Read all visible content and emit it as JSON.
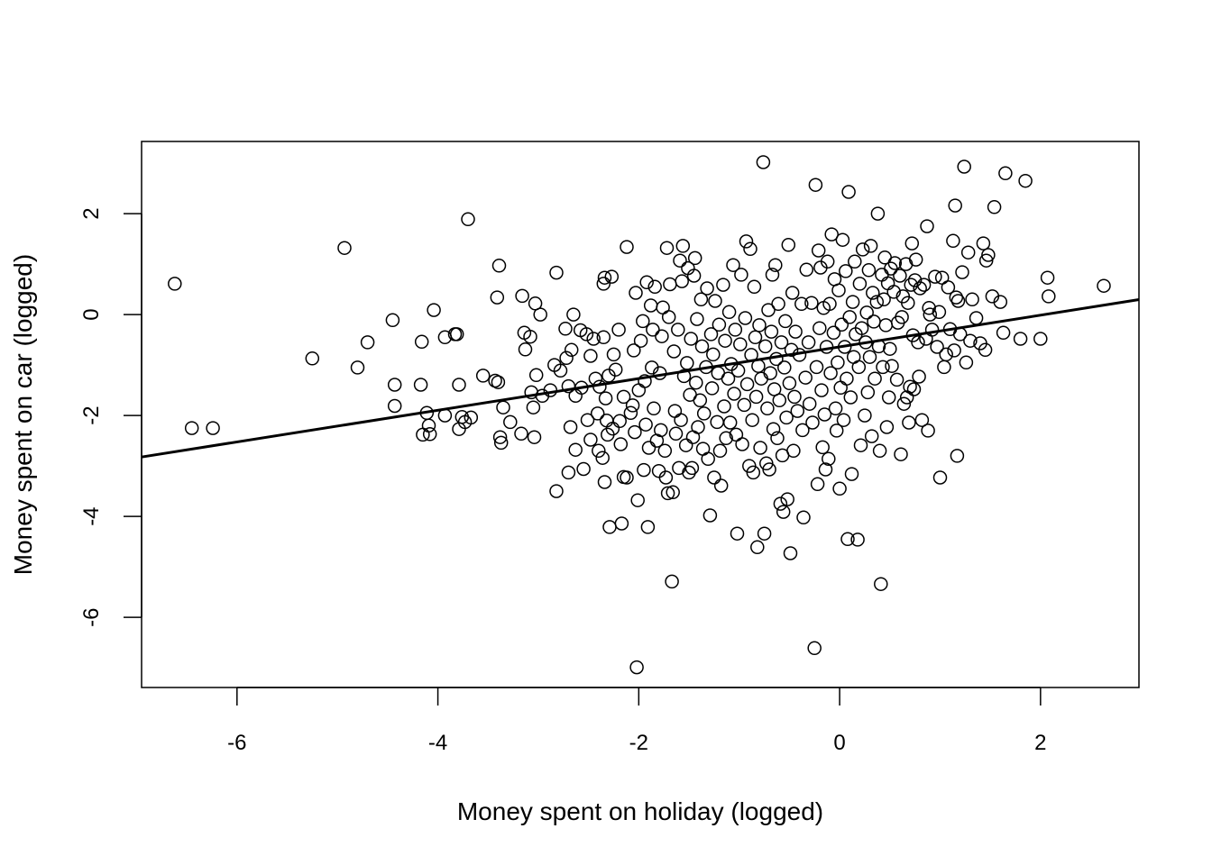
{
  "chart_data": {
    "type": "scatter",
    "title": "",
    "xlabel": "Money spent on holiday (logged)",
    "ylabel": "Money spent on car (logged)",
    "xlim": [
      -6.95,
      2.98
    ],
    "ylim": [
      -7.39,
      3.43
    ],
    "xticks": [
      -6,
      -4,
      -2,
      0,
      2
    ],
    "yticks": [
      -6,
      -4,
      -2,
      0,
      2
    ],
    "xtick_labels": [
      "-6",
      "-4",
      "-2",
      "0",
      "2"
    ],
    "ytick_labels": [
      "-6",
      "-4",
      "-2",
      "0",
      "2"
    ],
    "grid": false,
    "legend": null,
    "marker": "open-circle",
    "marker_color": "#000000",
    "regression_line": {
      "type": "linear",
      "intercept": -0.64,
      "slope": 0.314,
      "x_range": [
        -6.95,
        2.98
      ],
      "color": "#000000",
      "approx_n": 1000
    },
    "points": [
      [
        -6.62,
        0.61
      ],
      [
        -6.45,
        -2.25
      ],
      [
        -6.24,
        -2.25
      ],
      [
        -5.25,
        -0.87
      ],
      [
        -4.93,
        1.32
      ],
      [
        -4.8,
        -1.05
      ],
      [
        -4.7,
        -0.55
      ],
      [
        -4.45,
        -0.11
      ],
      [
        -4.43,
        -1.39
      ],
      [
        -4.43,
        -1.81
      ],
      [
        -4.17,
        -1.39
      ],
      [
        -4.16,
        -0.54
      ],
      [
        -4.15,
        -2.38
      ],
      [
        -4.11,
        -1.95
      ],
      [
        -4.09,
        -2.2
      ],
      [
        -4.08,
        -2.37
      ],
      [
        -4.04,
        0.09
      ],
      [
        -3.93,
        -2.0
      ],
      [
        -3.93,
        -0.45
      ],
      [
        -3.83,
        -0.39
      ],
      [
        -3.81,
        -0.39
      ],
      [
        -3.79,
        -1.39
      ],
      [
        -3.79,
        -2.27
      ],
      [
        -3.76,
        -2.03
      ],
      [
        -3.73,
        -2.13
      ],
      [
        -3.7,
        1.89
      ],
      [
        -3.67,
        -2.04
      ],
      [
        -3.55,
        -1.21
      ],
      [
        -3.43,
        -1.31
      ],
      [
        -3.41,
        0.34
      ],
      [
        -3.4,
        -1.34
      ],
      [
        -3.39,
        0.97
      ],
      [
        -3.38,
        -2.43
      ],
      [
        -3.37,
        -2.54
      ],
      [
        -3.35,
        -1.84
      ],
      [
        -3.28,
        -2.13
      ],
      [
        -3.17,
        -2.36
      ],
      [
        -3.16,
        0.37
      ],
      [
        -3.14,
        -0.36
      ],
      [
        -3.13,
        -0.69
      ],
      [
        -3.08,
        -0.44
      ],
      [
        -3.07,
        -1.54
      ],
      [
        -3.05,
        -1.84
      ],
      [
        -3.04,
        -2.43
      ],
      [
        -3.03,
        0.22
      ],
      [
        -3.02,
        -1.2
      ],
      [
        -2.98,
        0.0
      ],
      [
        -2.96,
        -1.61
      ],
      [
        -2.88,
        -1.5
      ],
      [
        -2.84,
        -1.0
      ],
      [
        -2.82,
        0.83
      ],
      [
        -2.82,
        -3.5
      ],
      [
        -2.78,
        -1.11
      ],
      [
        -2.73,
        -0.28
      ],
      [
        -2.72,
        -0.86
      ],
      [
        -2.7,
        -1.42
      ],
      [
        -2.7,
        -3.13
      ],
      [
        -2.68,
        -2.23
      ],
      [
        -2.67,
        -0.7
      ],
      [
        -2.65,
        0.0
      ],
      [
        -2.63,
        -2.68
      ],
      [
        -2.63,
        -1.61
      ],
      [
        -2.58,
        -0.31
      ],
      [
        -2.57,
        -1.45
      ],
      [
        -2.55,
        -3.06
      ],
      [
        -2.52,
        -0.39
      ],
      [
        -2.51,
        -2.09
      ],
      [
        -2.48,
        -0.82
      ],
      [
        -2.48,
        -2.48
      ],
      [
        -2.45,
        -0.48
      ],
      [
        -2.43,
        -1.27
      ],
      [
        -2.41,
        -1.96
      ],
      [
        -2.4,
        -2.7
      ],
      [
        -2.39,
        -1.43
      ],
      [
        -2.36,
        -2.84
      ],
      [
        -2.35,
        -0.45
      ],
      [
        -2.35,
        0.61
      ],
      [
        -2.34,
        0.73
      ],
      [
        -2.34,
        -3.32
      ],
      [
        -2.33,
        -1.66
      ],
      [
        -2.32,
        -2.1
      ],
      [
        -2.31,
        -2.38
      ],
      [
        -2.3,
        -1.21
      ],
      [
        -2.29,
        -4.21
      ],
      [
        -2.27,
        0.75
      ],
      [
        -2.26,
        -2.26
      ],
      [
        -2.25,
        -0.79
      ],
      [
        -2.23,
        -1.09
      ],
      [
        -2.2,
        -0.3
      ],
      [
        -2.19,
        -2.11
      ],
      [
        -2.18,
        -2.57
      ],
      [
        -2.17,
        -4.14
      ],
      [
        -2.15,
        -1.63
      ],
      [
        -2.15,
        -3.22
      ],
      [
        -2.12,
        -3.23
      ],
      [
        -2.12,
        1.34
      ],
      [
        -2.08,
        -1.95
      ],
      [
        -2.06,
        -1.8
      ],
      [
        -2.05,
        -0.71
      ],
      [
        -2.04,
        -2.33
      ],
      [
        -2.03,
        0.43
      ],
      [
        -2.02,
        -6.99
      ],
      [
        -2.01,
        -3.68
      ],
      [
        -2.0,
        -1.5
      ],
      [
        -1.98,
        -0.52
      ],
      [
        -1.96,
        -0.13
      ],
      [
        -1.95,
        -3.08
      ],
      [
        -1.94,
        -1.32
      ],
      [
        -1.93,
        -2.18
      ],
      [
        -1.92,
        0.64
      ],
      [
        -1.91,
        -4.21
      ],
      [
        -1.9,
        -2.64
      ],
      [
        -1.88,
        0.18
      ],
      [
        -1.87,
        -1.05
      ],
      [
        -1.86,
        -0.3
      ],
      [
        -1.85,
        -1.86
      ],
      [
        -1.84,
        0.55
      ],
      [
        -1.82,
        -2.5
      ],
      [
        -1.8,
        -3.1
      ],
      [
        -1.79,
        -1.16
      ],
      [
        -1.78,
        -2.29
      ],
      [
        -1.77,
        -0.43
      ],
      [
        -1.76,
        0.14
      ],
      [
        -1.74,
        -2.7
      ],
      [
        -1.73,
        -3.23
      ],
      [
        -1.72,
        1.32
      ],
      [
        -1.71,
        -3.54
      ],
      [
        -1.7,
        -0.05
      ],
      [
        -1.69,
        0.6
      ],
      [
        -1.67,
        -5.29
      ],
      [
        -1.66,
        -3.52
      ],
      [
        -1.65,
        -0.73
      ],
      [
        -1.64,
        -1.91
      ],
      [
        -1.63,
        -2.36
      ],
      [
        -1.61,
        -0.3
      ],
      [
        -1.6,
        -3.04
      ],
      [
        -1.59,
        1.07
      ],
      [
        -1.58,
        -2.09
      ],
      [
        -1.57,
        0.66
      ],
      [
        -1.56,
        1.36
      ],
      [
        -1.55,
        -1.22
      ],
      [
        -1.53,
        -2.59
      ],
      [
        -1.52,
        -0.96
      ],
      [
        -1.51,
        0.92
      ],
      [
        -1.5,
        -3.13
      ],
      [
        -1.49,
        -1.59
      ],
      [
        -1.48,
        -0.48
      ],
      [
        -1.47,
        -3.04
      ],
      [
        -1.46,
        -2.43
      ],
      [
        -1.45,
        0.77
      ],
      [
        -1.44,
        1.12
      ],
      [
        -1.43,
        -1.35
      ],
      [
        -1.42,
        -0.09
      ],
      [
        -1.41,
        -2.23
      ],
      [
        -1.39,
        -1.7
      ],
      [
        -1.38,
        0.3
      ],
      [
        -1.37,
        -0.63
      ],
      [
        -1.36,
        -2.66
      ],
      [
        -1.35,
        -1.96
      ],
      [
        -1.33,
        -1.04
      ],
      [
        -1.32,
        0.52
      ],
      [
        -1.31,
        -2.86
      ],
      [
        -1.29,
        -3.98
      ],
      [
        -1.28,
        -0.39
      ],
      [
        -1.27,
        -1.46
      ],
      [
        -1.26,
        -0.79
      ],
      [
        -1.25,
        -3.23
      ],
      [
        -1.24,
        0.27
      ],
      [
        -1.22,
        -2.13
      ],
      [
        -1.21,
        -1.16
      ],
      [
        -1.2,
        -0.2
      ],
      [
        -1.19,
        -2.7
      ],
      [
        -1.18,
        -3.39
      ],
      [
        -1.16,
        0.59
      ],
      [
        -1.15,
        -1.82
      ],
      [
        -1.14,
        -0.52
      ],
      [
        -1.13,
        -2.45
      ],
      [
        -1.11,
        -1.27
      ],
      [
        -1.1,
        0.05
      ],
      [
        -1.09,
        -2.14
      ],
      [
        -1.08,
        -0.98
      ],
      [
        -1.06,
        0.98
      ],
      [
        -1.05,
        -1.57
      ],
      [
        -1.04,
        -0.3
      ],
      [
        -1.03,
        -2.38
      ],
      [
        -1.02,
        -4.34
      ],
      [
        -1.01,
        -1.11
      ],
      [
        -0.99,
        -0.59
      ],
      [
        -0.98,
        0.79
      ],
      [
        -0.97,
        -2.57
      ],
      [
        -0.95,
        -1.79
      ],
      [
        -0.94,
        -0.07
      ],
      [
        -0.93,
        1.45
      ],
      [
        -0.92,
        -1.38
      ],
      [
        -0.9,
        -3.0
      ],
      [
        -0.89,
        1.3
      ],
      [
        -0.88,
        -0.8
      ],
      [
        -0.87,
        -2.09
      ],
      [
        -0.86,
        -3.13
      ],
      [
        -0.85,
        0.55
      ],
      [
        -0.84,
        -0.45
      ],
      [
        -0.83,
        -1.63
      ],
      [
        -0.82,
        -4.61
      ],
      [
        -0.81,
        -1.02
      ],
      [
        -0.8,
        -0.21
      ],
      [
        -0.79,
        -2.64
      ],
      [
        -0.78,
        -1.27
      ],
      [
        -0.76,
        3.02
      ],
      [
        -0.75,
        -4.34
      ],
      [
        -0.74,
        -0.63
      ],
      [
        -0.73,
        -2.95
      ],
      [
        -0.72,
        -1.86
      ],
      [
        -0.71,
        0.09
      ],
      [
        -0.7,
        -3.07
      ],
      [
        -0.69,
        -1.16
      ],
      [
        -0.68,
        -0.34
      ],
      [
        -0.67,
        0.79
      ],
      [
        -0.66,
        -2.27
      ],
      [
        -0.65,
        -1.48
      ],
      [
        -0.64,
        0.98
      ],
      [
        -0.63,
        -0.88
      ],
      [
        -0.62,
        -2.45
      ],
      [
        -0.61,
        0.21
      ],
      [
        -0.6,
        -1.7
      ],
      [
        -0.59,
        -3.75
      ],
      [
        -0.58,
        -0.55
      ],
      [
        -0.57,
        -2.79
      ],
      [
        -0.56,
        -3.91
      ],
      [
        -0.55,
        -1.05
      ],
      [
        -0.54,
        -0.13
      ],
      [
        -0.53,
        -2.04
      ],
      [
        -0.52,
        -3.66
      ],
      [
        -0.51,
        1.38
      ],
      [
        -0.5,
        -1.36
      ],
      [
        -0.49,
        -4.73
      ],
      [
        -0.48,
        -0.7
      ],
      [
        -0.47,
        0.43
      ],
      [
        -0.46,
        -2.7
      ],
      [
        -0.45,
        -1.63
      ],
      [
        -0.44,
        -0.34
      ],
      [
        -0.42,
        -1.91
      ],
      [
        -0.4,
        -0.8
      ],
      [
        -0.38,
        0.21
      ],
      [
        -0.37,
        -2.29
      ],
      [
        -0.36,
        -4.02
      ],
      [
        -0.34,
        -1.25
      ],
      [
        -0.33,
        0.89
      ],
      [
        -0.31,
        -0.55
      ],
      [
        -0.3,
        -1.77
      ],
      [
        -0.28,
        0.23
      ],
      [
        -0.27,
        -2.14
      ],
      [
        -0.25,
        -6.61
      ],
      [
        -0.24,
        2.57
      ],
      [
        -0.23,
        -1.04
      ],
      [
        -0.22,
        -3.36
      ],
      [
        -0.21,
        1.27
      ],
      [
        -0.2,
        -0.27
      ],
      [
        -0.19,
        0.93
      ],
      [
        -0.18,
        -1.5
      ],
      [
        -0.17,
        -2.63
      ],
      [
        -0.16,
        0.13
      ],
      [
        -0.15,
        -1.98
      ],
      [
        -0.14,
        -3.07
      ],
      [
        -0.13,
        -0.64
      ],
      [
        -0.12,
        1.05
      ],
      [
        -0.11,
        -2.86
      ],
      [
        -0.1,
        0.21
      ],
      [
        -0.09,
        -1.16
      ],
      [
        -0.08,
        1.59
      ],
      [
        -0.06,
        -0.36
      ],
      [
        -0.05,
        0.7
      ],
      [
        -0.04,
        -1.86
      ],
      [
        -0.03,
        -2.3
      ],
      [
        -0.02,
        -0.95
      ],
      [
        -0.01,
        0.48
      ],
      [
        0.0,
        -3.45
      ],
      [
        0.01,
        -1.45
      ],
      [
        0.02,
        -0.2
      ],
      [
        0.03,
        1.48
      ],
      [
        0.04,
        -2.09
      ],
      [
        0.05,
        -0.64
      ],
      [
        0.06,
        0.86
      ],
      [
        0.07,
        -1.27
      ],
      [
        0.08,
        -4.45
      ],
      [
        0.09,
        2.43
      ],
      [
        0.1,
        -0.05
      ],
      [
        0.11,
        -1.64
      ],
      [
        0.12,
        -3.16
      ],
      [
        0.13,
        0.25
      ],
      [
        0.14,
        -0.84
      ],
      [
        0.15,
        1.05
      ],
      [
        0.16,
        -0.39
      ],
      [
        0.18,
        -4.46
      ],
      [
        0.19,
        -1.04
      ],
      [
        0.2,
        0.61
      ],
      [
        0.21,
        -2.59
      ],
      [
        0.22,
        -0.27
      ],
      [
        0.23,
        1.29
      ],
      [
        0.25,
        -2.0
      ],
      [
        0.26,
        -0.55
      ],
      [
        0.27,
        0.04
      ],
      [
        0.28,
        -1.54
      ],
      [
        0.29,
        0.88
      ],
      [
        0.3,
        -0.84
      ],
      [
        0.31,
        1.36
      ],
      [
        0.32,
        -2.41
      ],
      [
        0.33,
        0.43
      ],
      [
        0.34,
        -0.14
      ],
      [
        0.35,
        -1.27
      ],
      [
        0.37,
        0.25
      ],
      [
        0.38,
        2.0
      ],
      [
        0.39,
        -0.63
      ],
      [
        0.4,
        -2.7
      ],
      [
        0.41,
        -5.34
      ],
      [
        0.42,
        0.79
      ],
      [
        0.43,
        -1.04
      ],
      [
        0.44,
        0.3
      ],
      [
        0.45,
        1.13
      ],
      [
        0.46,
        -0.21
      ],
      [
        0.47,
        -2.23
      ],
      [
        0.48,
        0.62
      ],
      [
        0.49,
        -1.64
      ],
      [
        0.5,
        -0.68
      ],
      [
        0.51,
        0.91
      ],
      [
        0.52,
        -1.02
      ],
      [
        0.54,
        0.45
      ],
      [
        0.55,
        1.02
      ],
      [
        0.57,
        -1.29
      ],
      [
        0.58,
        -0.16
      ],
      [
        0.6,
        0.77
      ],
      [
        0.61,
        -2.77
      ],
      [
        0.62,
        -0.05
      ],
      [
        0.63,
        0.36
      ],
      [
        0.64,
        -1.77
      ],
      [
        0.66,
        1.0
      ],
      [
        0.67,
        -1.64
      ],
      [
        0.68,
        0.23
      ],
      [
        0.69,
        -2.14
      ],
      [
        0.7,
        -1.43
      ],
      [
        0.71,
        0.59
      ],
      [
        0.72,
        1.41
      ],
      [
        0.73,
        -0.41
      ],
      [
        0.74,
        -1.48
      ],
      [
        0.75,
        0.68
      ],
      [
        0.76,
        1.09
      ],
      [
        0.78,
        -0.55
      ],
      [
        0.79,
        -1.23
      ],
      [
        0.8,
        0.52
      ],
      [
        0.82,
        -2.09
      ],
      [
        0.84,
        0.59
      ],
      [
        0.86,
        -0.48
      ],
      [
        0.87,
        1.75
      ],
      [
        0.88,
        -2.3
      ],
      [
        0.89,
        0.13
      ],
      [
        0.9,
        0.0
      ],
      [
        0.92,
        -0.3
      ],
      [
        0.95,
        0.75
      ],
      [
        0.97,
        -0.64
      ],
      [
        0.99,
        0.05
      ],
      [
        1.0,
        -3.23
      ],
      [
        1.02,
        0.73
      ],
      [
        1.04,
        -1.04
      ],
      [
        1.06,
        -0.79
      ],
      [
        1.08,
        0.54
      ],
      [
        1.1,
        -0.29
      ],
      [
        1.13,
        1.46
      ],
      [
        1.14,
        -0.71
      ],
      [
        1.15,
        2.16
      ],
      [
        1.16,
        0.34
      ],
      [
        1.17,
        -2.8
      ],
      [
        1.18,
        0.27
      ],
      [
        1.2,
        -0.39
      ],
      [
        1.22,
        0.84
      ],
      [
        1.24,
        2.93
      ],
      [
        1.26,
        -0.95
      ],
      [
        1.28,
        1.23
      ],
      [
        1.3,
        -0.52
      ],
      [
        1.32,
        0.3
      ],
      [
        1.36,
        -0.07
      ],
      [
        1.4,
        -0.57
      ],
      [
        1.43,
        1.41
      ],
      [
        1.45,
        -0.7
      ],
      [
        1.46,
        1.07
      ],
      [
        1.48,
        1.18
      ],
      [
        1.52,
        0.36
      ],
      [
        1.54,
        2.13
      ],
      [
        1.6,
        0.25
      ],
      [
        1.63,
        -0.36
      ],
      [
        1.65,
        2.8
      ],
      [
        1.8,
        -0.48
      ],
      [
        1.85,
        2.65
      ],
      [
        2.0,
        -0.48
      ],
      [
        2.07,
        0.73
      ],
      [
        2.08,
        0.36
      ],
      [
        2.63,
        0.57
      ]
    ]
  }
}
